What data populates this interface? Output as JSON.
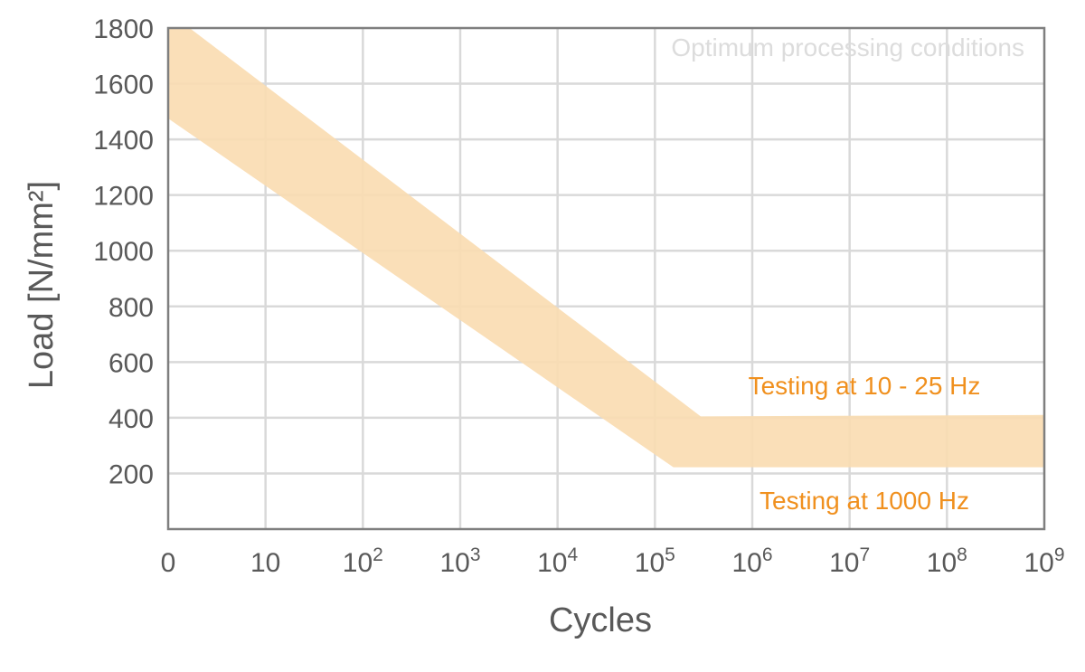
{
  "chart_data": {
    "type": "area",
    "title": "",
    "xlabel": "Cycles",
    "ylabel": "Load [N/mm²]",
    "x_scale": "log (decade index: 0 = origin, 1 = 10, n = 10^n)",
    "xlim": [
      0,
      9
    ],
    "ylim": [
      0,
      1800
    ],
    "x_ticks": [
      {
        "base": "0",
        "exp": ""
      },
      {
        "base": "10",
        "exp": ""
      },
      {
        "base": "10",
        "exp": "2"
      },
      {
        "base": "10",
        "exp": "3"
      },
      {
        "base": "10",
        "exp": "4"
      },
      {
        "base": "10",
        "exp": "5"
      },
      {
        "base": "10",
        "exp": "6"
      },
      {
        "base": "10",
        "exp": "7"
      },
      {
        "base": "10",
        "exp": "8"
      },
      {
        "base": "10",
        "exp": "9"
      }
    ],
    "y_ticks": [
      "200",
      "400",
      "600",
      "800",
      "1000",
      "1200",
      "1400",
      "1600",
      "1800"
    ],
    "grid": true,
    "band_color": "#f9dbb0",
    "series": [
      {
        "name": "Testing at 10 - 25 Hz (upper edge)",
        "x": [
          0,
          0.22,
          5.47,
          9
        ],
        "y": [
          1880,
          1800,
          405,
          410
        ]
      },
      {
        "name": "Testing at 1000 Hz (lower edge)",
        "x": [
          0,
          5.19,
          9
        ],
        "y": [
          1475,
          222,
          222
        ]
      }
    ],
    "annotations": {
      "watermark": "Optimum processing conditions",
      "upper_label": "Testing at 10 - 25 Hz",
      "lower_label": "Testing at 1000 Hz",
      "annotation_color": "#f0901e"
    }
  }
}
